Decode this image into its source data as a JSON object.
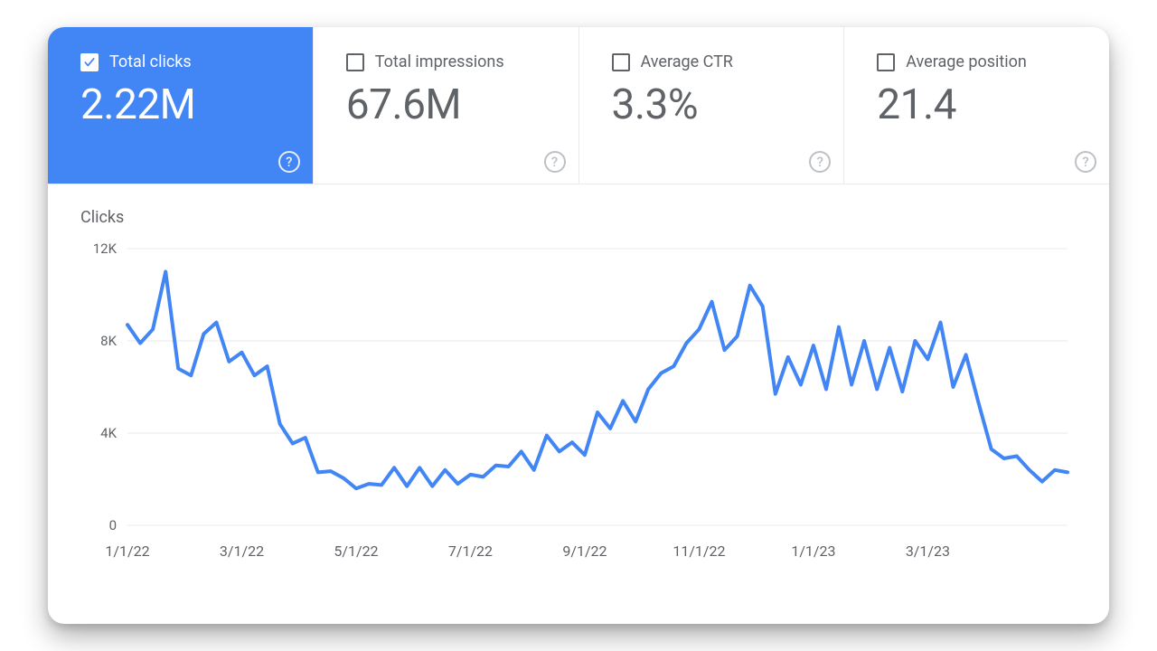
{
  "cards": [
    {
      "id": "total-clicks",
      "label": "Total clicks",
      "value": "2.22M",
      "active": true
    },
    {
      "id": "total-impressions",
      "label": "Total impressions",
      "value": "67.6M",
      "active": false
    },
    {
      "id": "average-ctr",
      "label": "Average CTR",
      "value": "3.3%",
      "active": false
    },
    {
      "id": "average-position",
      "label": "Average position",
      "value": "21.4",
      "active": false
    }
  ],
  "colors": {
    "accent": "#4285f4",
    "card_bg": "#ffffff",
    "text_muted": "#5f6368",
    "divider": "#e8eaed",
    "grid": "#e8eaed",
    "series": "#4285f4",
    "help_icon": "#bdc1c6"
  },
  "typography": {
    "label_fontsize": 18,
    "value_fontsize": 46,
    "axis_fontsize": 15,
    "title_fontsize": 18
  },
  "chart": {
    "type": "line",
    "title": "Clicks",
    "ylim": [
      0,
      12000
    ],
    "yticks": [
      0,
      4000,
      8000,
      12000
    ],
    "ytick_labels": [
      "0",
      "4K",
      "8K",
      "12K"
    ],
    "xtick_labels": [
      "1/1/22",
      "3/1/22",
      "5/1/22",
      "7/1/22",
      "9/1/22",
      "11/1/22",
      "1/1/23",
      "3/1/23"
    ],
    "xtick_positions": [
      0,
      9,
      18,
      27,
      36,
      45,
      54,
      63
    ],
    "line_width": 4,
    "series_color": "#4285f4",
    "grid_color": "#e8eaed",
    "background_color": "#ffffff",
    "values": [
      8700,
      7900,
      8500,
      11000,
      6800,
      6500,
      8300,
      8800,
      7100,
      7500,
      6500,
      6900,
      4400,
      3550,
      3800,
      2300,
      2350,
      2050,
      1600,
      1800,
      1750,
      2500,
      1700,
      2500,
      1700,
      2400,
      1800,
      2200,
      2100,
      2600,
      2550,
      3200,
      2400,
      3900,
      3200,
      3600,
      3050,
      4900,
      4200,
      5400,
      4500,
      5900,
      6600,
      6900,
      7900,
      8500,
      9700,
      7600,
      8200,
      10400,
      9500,
      5700,
      7300,
      6100,
      7800,
      5900,
      8600,
      6100,
      8000,
      5900,
      7700,
      5800,
      8000,
      7200,
      8800,
      6000,
      7400,
      5300,
      3300,
      2900,
      3000,
      2400,
      1900,
      2400,
      2300
    ]
  }
}
